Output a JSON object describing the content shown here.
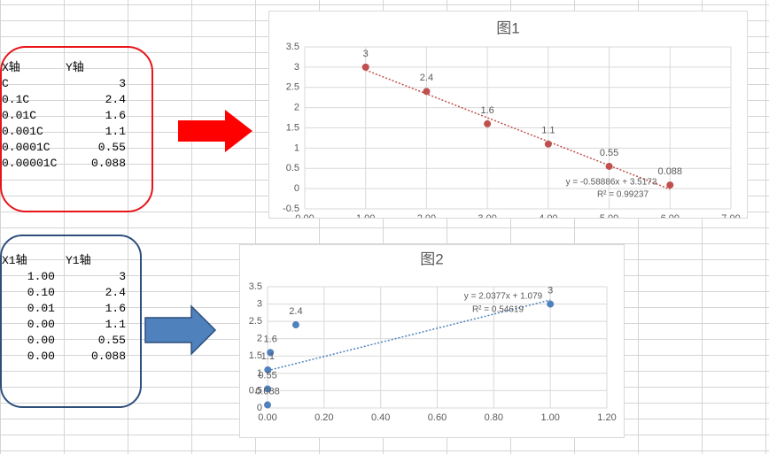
{
  "table1": {
    "header": [
      "X轴",
      "Y轴"
    ],
    "rows": [
      [
        "C",
        "3"
      ],
      [
        "0.1C",
        "2.4"
      ],
      [
        "0.01C",
        "1.6"
      ],
      [
        "0.001C",
        "1.1"
      ],
      [
        "0.0001C",
        "0.55"
      ],
      [
        "0.00001C",
        "0.088"
      ]
    ]
  },
  "table2": {
    "header": [
      "X1轴",
      "Y1轴"
    ],
    "rows": [
      [
        "1.00",
        "3"
      ],
      [
        "0.10",
        "2.4"
      ],
      [
        "0.01",
        "1.6"
      ],
      [
        "0.00",
        "1.1"
      ],
      [
        "0.00",
        "0.55"
      ],
      [
        "0.00",
        "0.088"
      ]
    ]
  },
  "chart_data": [
    {
      "type": "scatter",
      "title": "图1",
      "color": "#c0504d",
      "grid": true,
      "x": [
        1,
        2,
        3,
        4,
        5,
        6
      ],
      "values": [
        3,
        2.4,
        1.6,
        1.1,
        0.55,
        0.088
      ],
      "xlim": [
        0,
        7
      ],
      "xticks": [
        {
          "value": 0,
          "label": "0.00"
        },
        {
          "value": 1,
          "label": "1.00"
        },
        {
          "value": 2,
          "label": "2.00"
        },
        {
          "value": 3,
          "label": "3.00"
        },
        {
          "value": 4,
          "label": "4.00"
        },
        {
          "value": 5,
          "label": "5.00"
        },
        {
          "value": 6,
          "label": "6.00"
        },
        {
          "value": 7,
          "label": "7.00"
        }
      ],
      "ylim": [
        -0.5,
        3.5
      ],
      "yticks": [
        -0.5,
        0,
        0.5,
        1,
        1.5,
        2,
        2.5,
        3,
        3.5
      ],
      "trendline": {
        "slope": -0.58886,
        "intercept": 3.5173,
        "equation": "y = -0.58886x + 3.5173",
        "r2": "R² = 0.99237"
      }
    },
    {
      "type": "scatter",
      "title": "图2",
      "color": "#4f81bd",
      "grid": true,
      "x": [
        1,
        0.1,
        0.01,
        0.001,
        0.0001,
        1e-05
      ],
      "values": [
        3,
        2.4,
        1.6,
        1.1,
        0.55,
        0.088
      ],
      "xlim": [
        0,
        1.2
      ],
      "xticks": [
        {
          "value": 0,
          "label": "0.00"
        },
        {
          "value": 0.2,
          "label": "0.20"
        },
        {
          "value": 0.4,
          "label": "0.40"
        },
        {
          "value": 0.6,
          "label": "0.60"
        },
        {
          "value": 0.8,
          "label": "0.80"
        },
        {
          "value": 1,
          "label": "1.00"
        },
        {
          "value": 1.2,
          "label": "1.20"
        }
      ],
      "ylim": [
        0,
        3.5
      ],
      "yticks": [
        0,
        0.5,
        1,
        1.5,
        2,
        2.5,
        3,
        3.5
      ],
      "trendline": {
        "slope": 2.0377,
        "intercept": 1.079,
        "equation": "y = 2.0377x + 1.079",
        "r2": "R² = 0.54619"
      }
    }
  ]
}
